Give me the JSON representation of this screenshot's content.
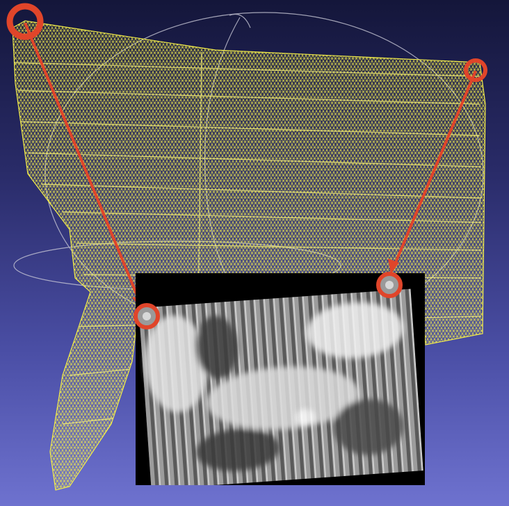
{
  "colors": {
    "background_top": "#14163a",
    "background_bottom": "#6e72cf",
    "mesh": "#f2ec4a",
    "trackball": "#c8c8d6",
    "marker": "#e0452a",
    "inset_background": "#000000"
  },
  "icons": {
    "trackball": "trackball-sphere",
    "mesh": "wireframe-mesh",
    "marker": "ring-marker",
    "arrow": "arrow"
  }
}
